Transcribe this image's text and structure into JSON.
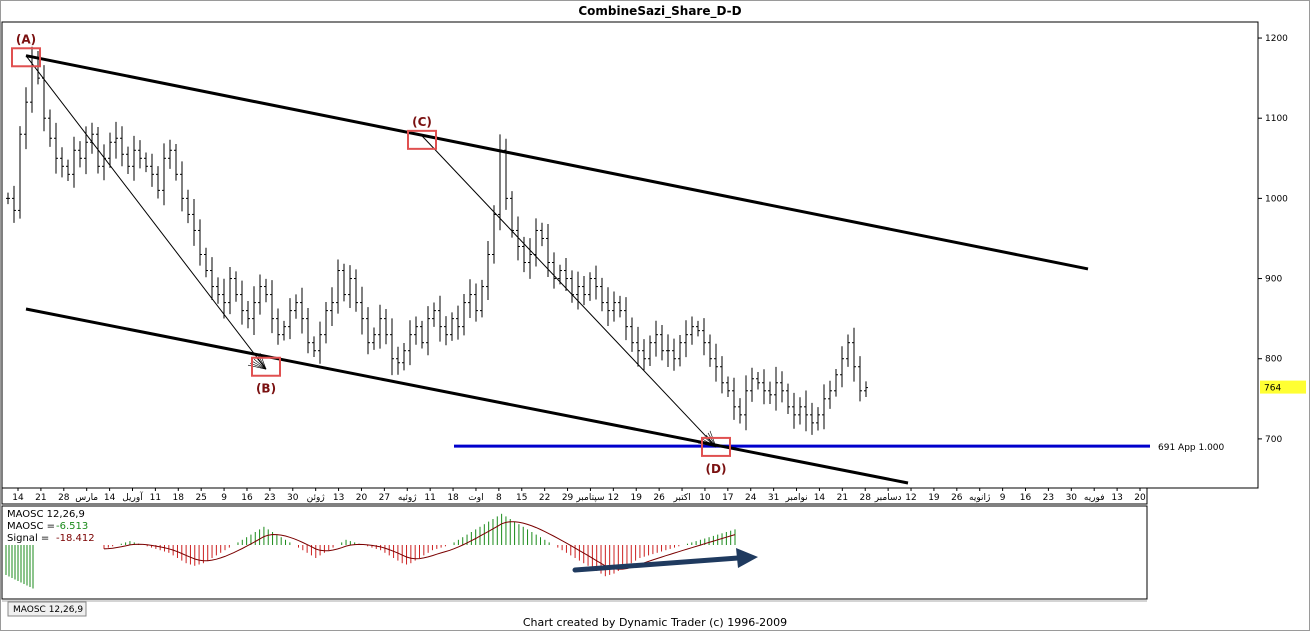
{
  "title": "CombineSazi_Share_D-D",
  "footer": "Chart created by Dynamic Trader  (c) 1996-2009",
  "colors": {
    "bars": "#000000",
    "channel": "#000000",
    "support_line": "#0000cc",
    "marker_box": "#e05050",
    "marker_label": "#7a1010",
    "price_tag_bg": "#ffff33",
    "histogram_pos": "#1a8a1a",
    "histogram_neg": "#cc2020",
    "signal_line": "#7a0000",
    "arrow": "#1f3a5f"
  },
  "chart_data": [
    {
      "type": "ohlc-bar",
      "title": "CombineSazi_Share_D-D",
      "y_axis": {
        "side": "right",
        "min": 640,
        "max": 1220,
        "ticks": [
          700,
          800,
          900,
          1000,
          1100,
          1200
        ]
      },
      "x_axis_labels": [
        "14",
        "21",
        "28",
        "مارس",
        "14",
        "آوریل",
        "11",
        "18",
        "25",
        "9",
        "16",
        "23",
        "30",
        "ژوئن",
        "13",
        "20",
        "27",
        "ژوئیه",
        "11",
        "18",
        "اوت",
        "8",
        "15",
        "22",
        "29",
        "سپتامبر",
        "12",
        "19",
        "26",
        "اکتبر",
        "10",
        "17",
        "24",
        "31",
        "نوامبر",
        "14",
        "21",
        "28",
        "دسامبر",
        "12",
        "19",
        "26",
        "ژانویه",
        "9",
        "16",
        "23",
        "30",
        "فوریه",
        "13",
        "20"
      ],
      "price_tag": "764",
      "support_label": "691 App 1.000",
      "support_level": 691,
      "markers": [
        {
          "label": "(A)",
          "bar": 3,
          "price": 1176
        },
        {
          "label": "(B)",
          "bar": 43,
          "price": 790
        },
        {
          "label": "(C)",
          "bar": 69,
          "price": 1073
        },
        {
          "label": "(D)",
          "bar": 118,
          "price": 690
        }
      ],
      "channel_upper": [
        {
          "bar": 3,
          "price": 1178
        },
        {
          "bar": 180,
          "price": 912
        }
      ],
      "channel_lower": [
        {
          "bar": 3,
          "price": 862
        },
        {
          "bar": 150,
          "price": 645
        }
      ],
      "fans": [
        {
          "from": {
            "bar": 3,
            "price": 1178
          },
          "to": {
            "bar": 43,
            "price": 787
          }
        },
        {
          "from": {
            "bar": 69,
            "price": 1078
          },
          "to": {
            "bar": 118,
            "price": 690
          }
        }
      ],
      "closes": [
        1000,
        985,
        1080,
        1120,
        1176,
        1150,
        1100,
        1075,
        1050,
        1040,
        1030,
        1060,
        1050,
        1070,
        1080,
        1040,
        1050,
        1070,
        1075,
        1055,
        1040,
        1060,
        1050,
        1040,
        1030,
        1010,
        1050,
        1060,
        1030,
        1000,
        980,
        960,
        930,
        910,
        890,
        880,
        870,
        900,
        880,
        860,
        850,
        870,
        890,
        880,
        850,
        830,
        840,
        860,
        870,
        850,
        820,
        810,
        830,
        860,
        870,
        910,
        880,
        900,
        870,
        850,
        820,
        830,
        850,
        830,
        800,
        795,
        810,
        830,
        840,
        820,
        850,
        860,
        840,
        830,
        850,
        840,
        870,
        880,
        860,
        890,
        930,
        980,
        1060,
        1000,
        960,
        940,
        920,
        930,
        960,
        950,
        920,
        900,
        910,
        900,
        880,
        890,
        880,
        900,
        890,
        870,
        860,
        870,
        860,
        840,
        820,
        810,
        800,
        820,
        830,
        810,
        810,
        800,
        820,
        830,
        840,
        835,
        820,
        800,
        790,
        770,
        760,
        740,
        730,
        760,
        775,
        770,
        760,
        755,
        770,
        760,
        740,
        730,
        740,
        730,
        720,
        730,
        750,
        760,
        780,
        800,
        820,
        790,
        760,
        764
      ]
    },
    {
      "type": "bar",
      "name": "MAOSC 12,26,9",
      "legend": [
        "MAOSC 12,26,9",
        "MAOSC =",
        "-6.513",
        "Signal =",
        "-18.412"
      ],
      "tab_label": "MAOSC 12,26,9",
      "histogram": [
        -3,
        -2,
        -1,
        0,
        1,
        2,
        3,
        2,
        1,
        0,
        -1,
        -2,
        -3,
        -4,
        -5,
        -6,
        -8,
        -10,
        -12,
        -14,
        -15,
        -16,
        -15,
        -14,
        -12,
        -10,
        -8,
        -6,
        -4,
        -2,
        0,
        2,
        4,
        6,
        8,
        10,
        12,
        14,
        12,
        10,
        8,
        6,
        4,
        2,
        0,
        -2,
        -4,
        -6,
        -8,
        -10,
        -8,
        -6,
        -4,
        -2,
        0,
        2,
        4,
        3,
        2,
        1,
        0,
        -1,
        -2,
        -3,
        -4,
        -6,
        -8,
        -10,
        -12,
        -14,
        -15,
        -14,
        -12,
        -10,
        -8,
        -6,
        -4,
        -3,
        -2,
        -1,
        0,
        2,
        4,
        6,
        8,
        10,
        12,
        14,
        16,
        18,
        20,
        22,
        24,
        22,
        20,
        18,
        16,
        14,
        12,
        10,
        8,
        6,
        4,
        2,
        0,
        -2,
        -4,
        -6,
        -8,
        -10,
        -12,
        -14,
        -16,
        -18,
        -20,
        -22,
        -24,
        -23,
        -22,
        -20,
        -18,
        -16,
        -14,
        -12,
        -10,
        -9,
        -8,
        -7,
        -6,
        -5,
        -4,
        -3,
        -2,
        -1,
        0,
        1,
        2,
        3,
        4,
        5,
        6,
        7,
        8,
        9,
        10,
        11,
        12
      ]
    }
  ]
}
